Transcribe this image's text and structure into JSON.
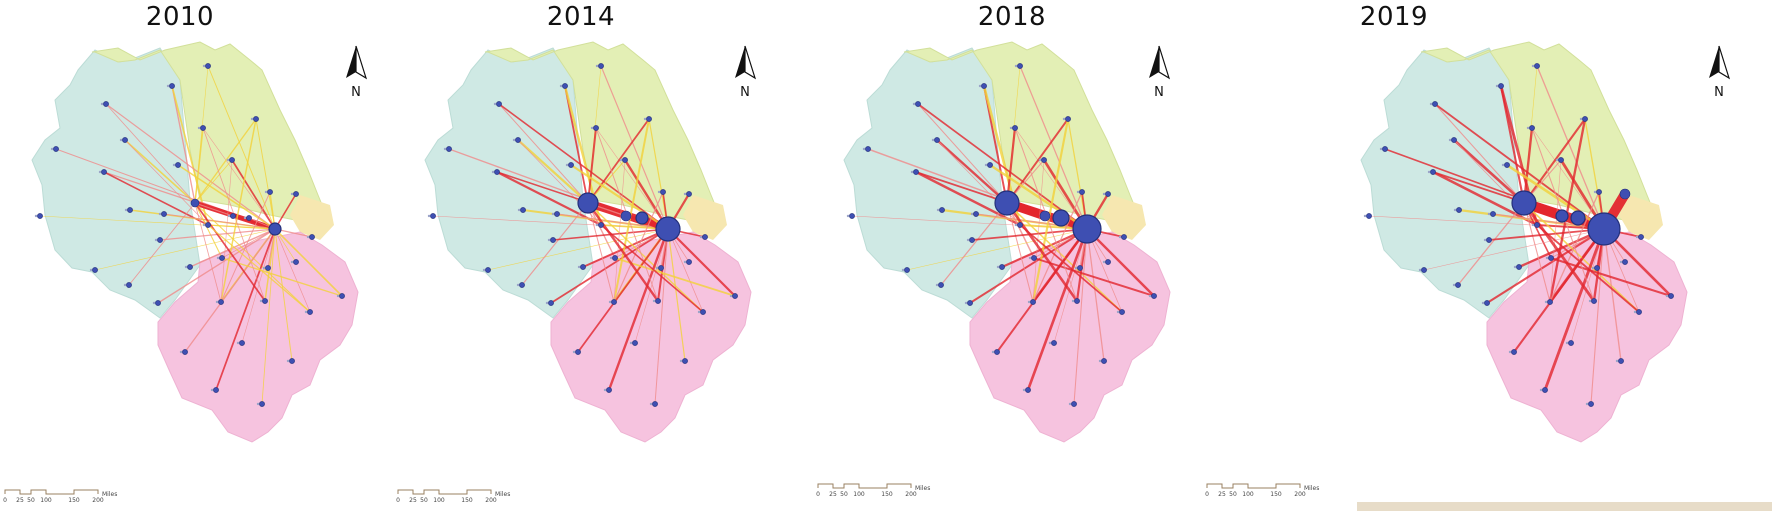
{
  "figure": {
    "panels": [
      {
        "year": "2010"
      },
      {
        "year": "2014"
      },
      {
        "year": "2018"
      },
      {
        "year": "2019"
      }
    ],
    "north_label": "N",
    "scale": {
      "ticks": [
        "0",
        "25",
        "50",
        "100",
        "150",
        "200"
      ],
      "unit": "Miles"
    },
    "colors": {
      "region_west": "#cfe9e4",
      "region_north": "#e3efb5",
      "region_south": "#f6c3df",
      "region_coast": "#f6e7b0",
      "link_strong": "#e3262e",
      "link_weak": "#f08b8b",
      "link_yellow": "#f3d23a",
      "node_fill": "#3e4fb2"
    }
  }
}
